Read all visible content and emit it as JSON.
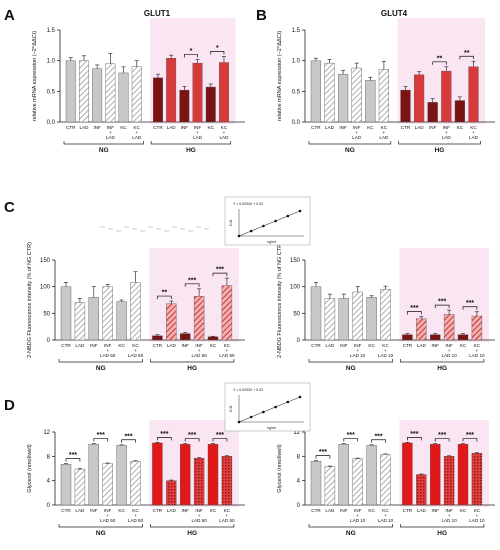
{
  "colors": {
    "ng_solid": "#c8c8c8",
    "ng_hatch": "#d8d8d8",
    "hg_dark": "#7a1414",
    "hg_red": "#d83a3a",
    "hg_bright": "#e01818",
    "highlight": "#f4c6e4",
    "axis": "#222222"
  },
  "chart_data": [
    {
      "panel": "A",
      "type": "bar",
      "title": "GLUT1",
      "ylabel": "relative mRNA expression (−2^ΔΔCt)",
      "ylim": [
        0,
        1.5
      ],
      "yticks": [
        "0.0",
        "0.5",
        "1.0",
        "1.5"
      ],
      "categories": [
        "CTR",
        "LAD",
        "INF",
        "INF + LAD",
        "KC",
        "KC + LAD",
        "CTR",
        "LAD",
        "INF",
        "INF + LAD",
        "KC",
        "KC + LAD"
      ],
      "groups": [
        "NG",
        "HG"
      ],
      "values": [
        1.0,
        1.0,
        0.87,
        0.95,
        0.8,
        0.9,
        0.72,
        1.04,
        0.52,
        0.96,
        0.57,
        0.97
      ],
      "errors": [
        0.05,
        0.08,
        0.06,
        0.17,
        0.1,
        0.1,
        0.06,
        0.05,
        0.06,
        0.06,
        0.05,
        0.1
      ],
      "significance": [
        {
          "pair": [
            8,
            9
          ],
          "label": "*"
        },
        {
          "pair": [
            10,
            11
          ],
          "label": "*"
        }
      ]
    },
    {
      "panel": "B",
      "type": "bar",
      "title": "GLUT4",
      "ylabel": "relative mRNA expression (−2^ΔΔCt)",
      "ylim": [
        0,
        1.5
      ],
      "yticks": [
        "0.0",
        "0.5",
        "1.0",
        "1.5"
      ],
      "categories": [
        "CTR",
        "LAD",
        "INF",
        "INF + LAD",
        "KC",
        "KC + LAD",
        "CTR",
        "LAD",
        "INF",
        "INF + LAD",
        "KC",
        "KC + LAD"
      ],
      "groups": [
        "NG",
        "HG"
      ],
      "values": [
        1.0,
        0.96,
        0.78,
        0.88,
        0.68,
        0.86,
        0.52,
        0.77,
        0.32,
        0.83,
        0.35,
        0.9
      ],
      "errors": [
        0.04,
        0.06,
        0.06,
        0.08,
        0.05,
        0.13,
        0.06,
        0.05,
        0.06,
        0.07,
        0.06,
        0.09
      ],
      "significance": [
        {
          "pair": [
            8,
            9
          ],
          "label": "**"
        },
        {
          "pair": [
            10,
            11
          ],
          "label": "**"
        }
      ]
    },
    {
      "panel": "C",
      "type": "bar",
      "title": "",
      "ylabel": "2-NBDG Fluorescence intensity (% of NG CTR)",
      "ylim": [
        0,
        150
      ],
      "yticks": [
        "0",
        "50",
        "100",
        "150"
      ],
      "categories": [
        "CTR",
        "LAD",
        "INF",
        "INF + LAD 50",
        "KC",
        "KC + LAD 50",
        "CTR",
        "LAD",
        "INF",
        "INF + LAD 50",
        "KC",
        "KC + LAD 50"
      ],
      "groups": [
        "NG",
        "HG"
      ],
      "values": [
        100,
        70,
        80,
        100,
        72,
        108,
        8,
        68,
        12,
        82,
        6,
        102
      ],
      "errors": [
        8,
        8,
        20,
        4,
        3,
        20,
        2,
        5,
        2,
        14,
        1,
        14
      ],
      "significance": [
        {
          "pair": [
            6,
            7
          ],
          "label": "**"
        },
        {
          "pair": [
            8,
            9
          ],
          "label": "***"
        },
        {
          "pair": [
            10,
            11
          ],
          "label": "***"
        }
      ]
    },
    {
      "panel": "C-right",
      "type": "bar",
      "title": "",
      "ylabel": "2-NBDG Fluorescence intensity (% of NG CTR)",
      "ylim": [
        0,
        150
      ],
      "yticks": [
        "0",
        "50",
        "100",
        "150"
      ],
      "categories": [
        "CTR",
        "LAD",
        "INF",
        "INF + LAD 10",
        "KC",
        "KC + LAD 10",
        "CTR",
        "LAD",
        "INF",
        "INF + LAD 10",
        "KC",
        "KC + LAD 10"
      ],
      "groups": [
        "NG",
        "HG"
      ],
      "values": [
        100,
        78,
        78,
        90,
        80,
        95,
        10,
        40,
        10,
        48,
        10,
        45
      ],
      "errors": [
        8,
        8,
        8,
        10,
        3,
        6,
        2,
        4,
        2,
        8,
        2,
        8
      ],
      "significance": [
        {
          "pair": [
            6,
            7
          ],
          "label": "***"
        },
        {
          "pair": [
            8,
            9
          ],
          "label": "***"
        },
        {
          "pair": [
            10,
            11
          ],
          "label": "***"
        }
      ]
    },
    {
      "panel": "D",
      "type": "bar",
      "title": "",
      "ylabel": "Glycerol (nmol/well)",
      "ylim": [
        0,
        12
      ],
      "yticks": [
        "0",
        "4",
        "8",
        "12"
      ],
      "categories": [
        "CTR",
        "LAD",
        "INF",
        "INF + LAD 50",
        "KC",
        "KC + LAD 50",
        "CTR",
        "LAD",
        "INF",
        "INF + LAD 50",
        "KC",
        "KC + LAD 50"
      ],
      "groups": [
        "NG",
        "HG"
      ],
      "values": [
        6.7,
        5.9,
        10.0,
        6.8,
        9.8,
        7.2,
        10.2,
        4.0,
        10.0,
        7.7,
        10.0,
        8.0
      ],
      "errors": [
        0.1,
        0.1,
        0.1,
        0.1,
        0.1,
        0.1,
        0.1,
        0.1,
        0.1,
        0.1,
        0.1,
        0.1
      ],
      "significance": [
        {
          "pair": [
            0,
            1
          ],
          "label": "***"
        },
        {
          "pair": [
            2,
            3
          ],
          "label": "***"
        },
        {
          "pair": [
            4,
            5
          ],
          "label": "***"
        },
        {
          "pair": [
            6,
            7
          ],
          "label": "***"
        },
        {
          "pair": [
            8,
            9
          ],
          "label": "***"
        },
        {
          "pair": [
            10,
            11
          ],
          "label": "***"
        }
      ]
    },
    {
      "panel": "D-right",
      "type": "bar",
      "title": "",
      "ylabel": "Glycerol (nmol/well)",
      "ylim": [
        0,
        12
      ],
      "yticks": [
        "0",
        "4",
        "8",
        "12"
      ],
      "categories": [
        "CTR",
        "LAD",
        "INF",
        "INF + LAD 10",
        "KC",
        "KC + LAD 10",
        "CTR",
        "LAD",
        "INF",
        "INF + LAD 10",
        "KC",
        "KC + LAD 10"
      ],
      "groups": [
        "NG",
        "HG"
      ],
      "values": [
        7.2,
        6.3,
        10.0,
        7.6,
        9.8,
        8.3,
        10.2,
        5.0,
        10.0,
        8.0,
        10.0,
        8.5
      ],
      "errors": [
        0.1,
        0.1,
        0.1,
        0.1,
        0.1,
        0.1,
        0.1,
        0.1,
        0.1,
        0.1,
        0.1,
        0.1
      ],
      "significance": [
        {
          "pair": [
            0,
            1
          ],
          "label": "***"
        },
        {
          "pair": [
            2,
            3
          ],
          "label": "***"
        },
        {
          "pair": [
            4,
            5
          ],
          "label": "***"
        },
        {
          "pair": [
            6,
            7
          ],
          "label": "***"
        },
        {
          "pair": [
            8,
            9
          ],
          "label": "***"
        },
        {
          "pair": [
            10,
            11
          ],
          "label": "***"
        }
      ]
    }
  ],
  "insets": [
    {
      "title": "Y = 0.0004X + 0.02",
      "xlabel": "ng/ml",
      "ylabel": "O.D."
    },
    {
      "title": "Y = 0.0003X + 0.02",
      "xlabel": "ng/ml",
      "ylabel": "O.D."
    }
  ]
}
